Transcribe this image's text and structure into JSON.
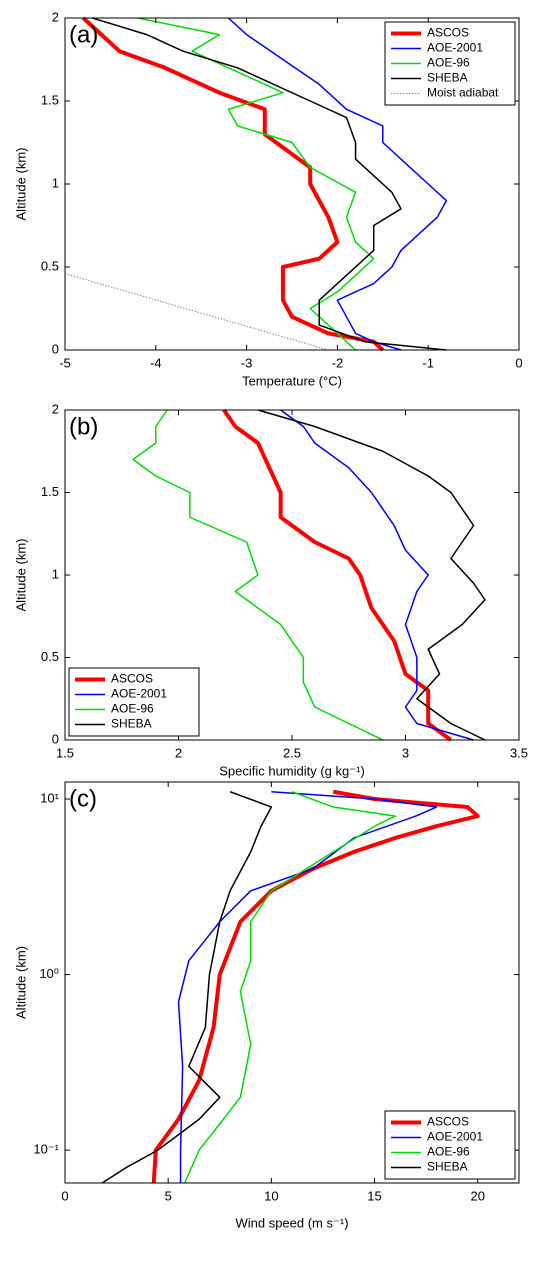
{
  "chart_data": [
    {
      "type": "line",
      "panel_label": "(a)",
      "xlabel": "Temperature (°C)",
      "ylabel": "Altitude (km)",
      "xlim": [
        -5,
        0
      ],
      "ylim": [
        0,
        2
      ],
      "xticks": [
        -5,
        -4,
        -3,
        -2,
        -1,
        0
      ],
      "yticks": [
        0,
        0.5,
        1,
        1.5,
        2
      ],
      "legend": "upper-right",
      "series": [
        {
          "name": "ASCOS",
          "color": "#ff0000",
          "linewidth": 4,
          "x": [
            -1.5,
            -1.6,
            -2.1,
            -2.5,
            -2.6,
            -2.6,
            -2.6,
            -2.2,
            -2.0,
            -2.1,
            -2.3,
            -2.3,
            -2.8,
            -2.8,
            -3.3,
            -3.9,
            -4.4,
            -4.6,
            -4.8
          ],
          "values": [
            0,
            0.05,
            0.1,
            0.2,
            0.3,
            0.4,
            0.5,
            0.55,
            0.65,
            0.8,
            1.0,
            1.1,
            1.3,
            1.45,
            1.55,
            1.7,
            1.8,
            1.9,
            2.0
          ]
        },
        {
          "name": "AOE-2001",
          "color": "#0000ff",
          "linewidth": 1.5,
          "x": [
            -1.3,
            -1.6,
            -1.8,
            -1.9,
            -2.0,
            -1.6,
            -1.4,
            -1.3,
            -1.1,
            -0.9,
            -0.8,
            -1.0,
            -1.2,
            -1.5,
            -1.5,
            -1.9,
            -2.2,
            -2.6,
            -3.0,
            -3.2
          ],
          "values": [
            0,
            0.05,
            0.1,
            0.2,
            0.3,
            0.4,
            0.5,
            0.6,
            0.7,
            0.8,
            0.9,
            1.0,
            1.1,
            1.25,
            1.35,
            1.45,
            1.6,
            1.75,
            1.9,
            2.0
          ]
        },
        {
          "name": "AOE-96",
          "color": "#00dd00",
          "linewidth": 1.5,
          "x": [
            -1.8,
            -1.9,
            -2.1,
            -2.3,
            -2.0,
            -1.8,
            -1.6,
            -1.8,
            -1.9,
            -1.8,
            -2.3,
            -2.5,
            -3.1,
            -3.2,
            -2.6,
            -3.2,
            -3.6,
            -3.3,
            -4.2
          ],
          "values": [
            0,
            0.05,
            0.15,
            0.25,
            0.35,
            0.45,
            0.55,
            0.65,
            0.8,
            0.95,
            1.1,
            1.25,
            1.35,
            1.45,
            1.55,
            1.7,
            1.8,
            1.9,
            2.0
          ]
        },
        {
          "name": "SHEBA",
          "color": "#000000",
          "linewidth": 1.5,
          "x": [
            -0.8,
            -1.7,
            -2.2,
            -2.2,
            -1.9,
            -1.6,
            -1.6,
            -1.3,
            -1.4,
            -1.6,
            -1.8,
            -1.8,
            -1.9,
            -2.3,
            -2.7,
            -3.1,
            -3.7,
            -4.1,
            -4.7
          ],
          "values": [
            0,
            0.05,
            0.15,
            0.3,
            0.45,
            0.6,
            0.75,
            0.85,
            0.95,
            1.05,
            1.15,
            1.25,
            1.4,
            1.5,
            1.6,
            1.7,
            1.8,
            1.9,
            2.0
          ]
        },
        {
          "name": "Moist adiabat",
          "color": "#888888",
          "linewidth": 1,
          "dash": "dotted",
          "x": [
            -5,
            -2.1
          ],
          "values": [
            0.46,
            0
          ]
        }
      ]
    },
    {
      "type": "line",
      "panel_label": "(b)",
      "xlabel": "Specific humidity (g kg⁻¹)",
      "ylabel": "Altitude (km)",
      "xlim": [
        1.5,
        3.5
      ],
      "ylim": [
        0,
        2
      ],
      "xticks": [
        1.5,
        2,
        2.5,
        3,
        3.5
      ],
      "yticks": [
        0,
        0.5,
        1,
        1.5,
        2
      ],
      "legend": "lower-left",
      "series": [
        {
          "name": "ASCOS",
          "color": "#ff0000",
          "linewidth": 4,
          "x": [
            3.2,
            3.1,
            3.1,
            3.0,
            2.95,
            2.85,
            2.8,
            2.75,
            2.6,
            2.45,
            2.45,
            2.4,
            2.35,
            2.25,
            2.2
          ],
          "values": [
            0,
            0.1,
            0.3,
            0.4,
            0.6,
            0.8,
            1.0,
            1.1,
            1.2,
            1.35,
            1.5,
            1.65,
            1.8,
            1.9,
            2.0
          ]
        },
        {
          "name": "AOE-2001",
          "color": "#0000ff",
          "linewidth": 1.5,
          "x": [
            3.3,
            3.05,
            3.0,
            3.05,
            3.05,
            3.0,
            3.05,
            3.1,
            3.0,
            2.95,
            2.85,
            2.75,
            2.6,
            2.55,
            2.45
          ],
          "values": [
            0,
            0.1,
            0.2,
            0.3,
            0.5,
            0.7,
            0.9,
            1.0,
            1.15,
            1.3,
            1.5,
            1.65,
            1.8,
            1.9,
            2.0
          ]
        },
        {
          "name": "AOE-96",
          "color": "#00dd00",
          "linewidth": 1.5,
          "x": [
            2.9,
            2.75,
            2.6,
            2.55,
            2.55,
            2.45,
            2.25,
            2.35,
            2.3,
            2.05,
            2.05,
            1.9,
            1.8,
            1.9,
            1.9,
            1.95
          ],
          "values": [
            0,
            0.1,
            0.2,
            0.35,
            0.5,
            0.7,
            0.9,
            1.0,
            1.2,
            1.35,
            1.5,
            1.6,
            1.7,
            1.8,
            1.9,
            2.0
          ]
        },
        {
          "name": "SHEBA",
          "color": "#000000",
          "linewidth": 1.5,
          "x": [
            3.35,
            3.2,
            3.05,
            3.15,
            3.1,
            3.25,
            3.35,
            3.3,
            3.2,
            3.3,
            3.2,
            3.1,
            2.9,
            2.6,
            2.35
          ],
          "values": [
            0,
            0.1,
            0.25,
            0.4,
            0.55,
            0.7,
            0.85,
            0.95,
            1.1,
            1.3,
            1.5,
            1.6,
            1.75,
            1.9,
            2.0
          ]
        }
      ]
    },
    {
      "type": "line",
      "panel_label": "(c)",
      "xlabel": "Wind speed (m s⁻¹)",
      "ylabel": "Altitude (km)",
      "xlim": [
        0,
        22
      ],
      "ylim": [
        0.065,
        12.5
      ],
      "ylog": true,
      "xticks": [
        0,
        5,
        10,
        15,
        20
      ],
      "yticks": [
        {
          "value": 0.1,
          "label": "10⁻¹"
        },
        {
          "value": 1,
          "label": "10⁰"
        },
        {
          "value": 10,
          "label": "10¹"
        }
      ],
      "legend": "lower-right",
      "series": [
        {
          "name": "ASCOS",
          "color": "#ff0000",
          "linewidth": 4,
          "x": [
            4.3,
            4.4,
            5.5,
            6.5,
            7.2,
            7.5,
            8.5,
            10,
            12,
            14,
            16,
            18,
            20,
            19.5,
            15,
            13
          ],
          "values": [
            0.065,
            0.1,
            0.15,
            0.25,
            0.5,
            1,
            2,
            3,
            4,
            5,
            6,
            7,
            8,
            9,
            10,
            11
          ]
        },
        {
          "name": "AOE-2001",
          "color": "#0000ff",
          "linewidth": 1.5,
          "x": [
            5.6,
            5.6,
            5.7,
            5.5,
            6,
            7.5,
            9,
            12,
            14,
            17,
            18,
            15,
            10
          ],
          "values": [
            0.065,
            0.1,
            0.3,
            0.7,
            1.2,
            2,
            3,
            4,
            6,
            8,
            9,
            10,
            11
          ]
        },
        {
          "name": "AOE-96",
          "color": "#00dd00",
          "linewidth": 1.5,
          "x": [
            5.8,
            6.5,
            8.5,
            9,
            8.5,
            9,
            9,
            10,
            13,
            15,
            16,
            13,
            11
          ],
          "values": [
            0.065,
            0.1,
            0.2,
            0.4,
            0.8,
            1.2,
            2,
            3,
            5,
            7,
            8,
            9,
            11
          ]
        },
        {
          "name": "SHEBA",
          "color": "#000000",
          "linewidth": 1.5,
          "x": [
            1.8,
            3,
            4.5,
            6.5,
            7.5,
            6,
            6.8,
            7,
            7.5,
            8,
            9,
            9.5,
            10,
            8
          ],
          "values": [
            0.065,
            0.08,
            0.1,
            0.15,
            0.2,
            0.3,
            0.5,
            1,
            2,
            3,
            5,
            7,
            9,
            11
          ]
        }
      ]
    }
  ]
}
